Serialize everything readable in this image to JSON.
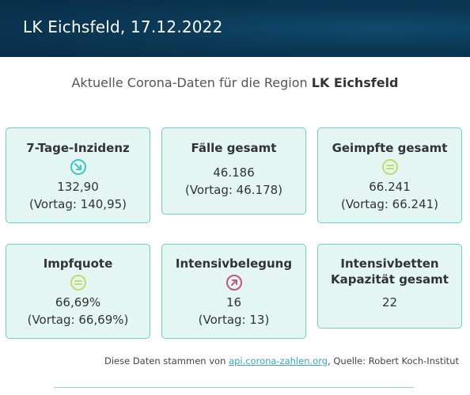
{
  "header": {
    "title": "LK Eichsfeld, 17.12.2022"
  },
  "subtitle": {
    "prefix": "Aktuelle Corona-Daten für die Region ",
    "region": "LK Eichsfeld"
  },
  "cards": {
    "incidence": {
      "title": "7-Tage-Inzidenz",
      "value": "132,90",
      "previous": "(Vortag: 140,95)",
      "trend_icon": "arrow-down-right-icon",
      "trend_color": "#3ec6c9"
    },
    "cases": {
      "title": "Fälle gesamt",
      "value": "46.186",
      "previous": "(Vortag: 46.178)"
    },
    "vaccinated": {
      "title": "Geimpfte gesamt",
      "value": "66.241",
      "previous": "(Vortag: 66.241)",
      "trend_icon": "equals-icon",
      "trend_color": "#c5d96a"
    },
    "vaccination_rate": {
      "title": "Impfquote",
      "value": "66,69%",
      "previous": "(Vortag: 66,69%)",
      "trend_icon": "equals-icon",
      "trend_color": "#c5d96a"
    },
    "icu": {
      "title": "Intensivbelegung",
      "value": "16",
      "previous": "(Vortag: 13)",
      "trend_icon": "arrow-up-right-icon",
      "trend_color": "#c2557a"
    },
    "icu_capacity": {
      "title_line1": "Intensivbetten",
      "title_line2": "Kapazität gesamt",
      "value": "22"
    }
  },
  "footer": {
    "prefix": "Diese Daten stammen von ",
    "link": "api.corona-zahlen.org",
    "suffix": ", Quelle: Robert Koch-Institut"
  }
}
